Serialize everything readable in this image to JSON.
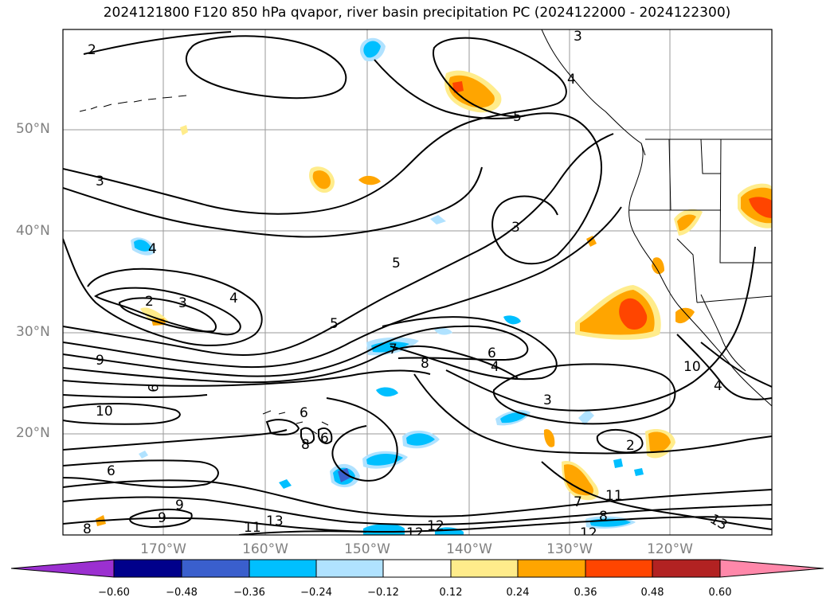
{
  "title": "2024121800 F120 850 hPa qvapor, river basin precipitation PC (2024122000 - 2024122300)",
  "lat_labels": [
    "50°N",
    "40°N",
    "30°N",
    "20°N"
  ],
  "lon_labels": [
    "170°W",
    "160°W",
    "150°W",
    "140°W",
    "130°W",
    "120°W"
  ],
  "colorbar": {
    "ticks": [
      "−0.60",
      "−0.48",
      "−0.36",
      "−0.24",
      "−0.12",
      "0.12",
      "0.24",
      "0.36",
      "0.48",
      "0.60"
    ],
    "colors": [
      "#9b30d0",
      "#00008b",
      "#3a5fcd",
      "#00bfff",
      "#b0e2ff",
      "#ffffff",
      "#ffec8b",
      "#ffa500",
      "#ff4500",
      "#b22222",
      "#ff88aa"
    ]
  },
  "contour_labels": [
    "2",
    "3",
    "4",
    "5",
    "5",
    "3",
    "3",
    "4",
    "2",
    "3",
    "4",
    "5",
    "7",
    "9",
    "8",
    "6",
    "4",
    "3",
    "9",
    "10",
    "6",
    "6",
    "8",
    "6",
    "9",
    "9",
    "8",
    "11",
    "13",
    "12",
    "12",
    "11",
    "7",
    "8",
    "12",
    "13",
    "10",
    "2",
    "4",
    "3"
  ]
}
